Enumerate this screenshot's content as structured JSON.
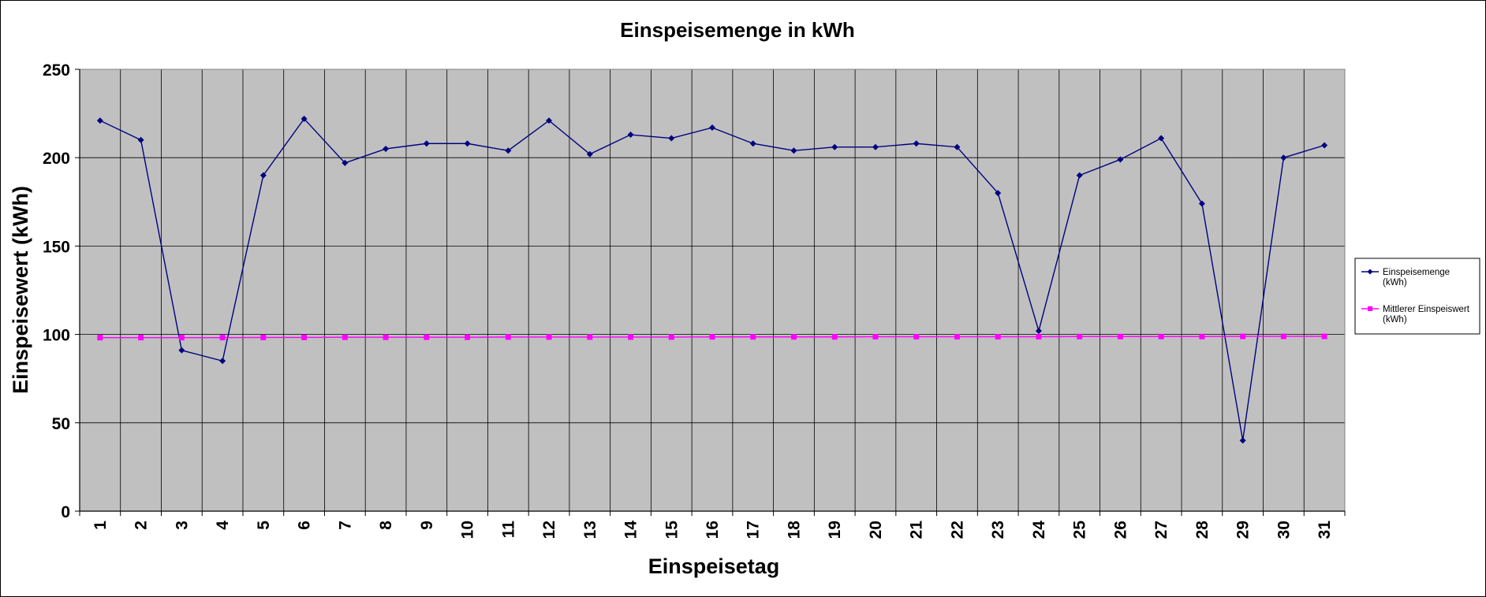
{
  "chart_data": {
    "type": "line",
    "title": "Einspeisemenge in kWh",
    "xlabel": "Einspeisetag",
    "ylabel": "Einspeisewert  (kWh)",
    "categories": [
      "1",
      "2",
      "3",
      "4",
      "5",
      "6",
      "7",
      "8",
      "9",
      "10",
      "11",
      "12",
      "13",
      "14",
      "15",
      "16",
      "17",
      "18",
      "19",
      "20",
      "21",
      "22",
      "23",
      "24",
      "25",
      "26",
      "27",
      "28",
      "29",
      "30",
      "31"
    ],
    "ylim": [
      0,
      250
    ],
    "yticks": [
      0,
      50,
      100,
      150,
      200,
      250
    ],
    "grid": true,
    "legend_position": "right",
    "series": [
      {
        "name": "Einspeisemenge (kWh)",
        "legend_lines": [
          "Einspeisemenge",
          "(kWh)"
        ],
        "color": "#000080",
        "marker": "diamond",
        "values": [
          221,
          210,
          91,
          85,
          190,
          222,
          197,
          205,
          208,
          208,
          204,
          221,
          202,
          213,
          211,
          217,
          208,
          204,
          206,
          206,
          208,
          206,
          180,
          102,
          190,
          199,
          211,
          174,
          40,
          200,
          207
        ]
      },
      {
        "name": "Mittlerer Einspeiswert (kWh)",
        "legend_lines": [
          "Mittlerer Einspeiswert",
          "(kWh)"
        ],
        "color": "#ff00ff",
        "marker": "square",
        "values": [
          98.2,
          98.2,
          98.2,
          98.2,
          98.3,
          98.3,
          98.4,
          98.4,
          98.4,
          98.4,
          98.5,
          98.5,
          98.5,
          98.5,
          98.5,
          98.6,
          98.6,
          98.6,
          98.6,
          98.7,
          98.7,
          98.7,
          98.7,
          98.7,
          98.8,
          98.8,
          98.8,
          98.8,
          98.9,
          98.9,
          98.9
        ]
      }
    ],
    "colors": {
      "plot_background": "#c0c0c0",
      "gridline": "#000000"
    }
  }
}
